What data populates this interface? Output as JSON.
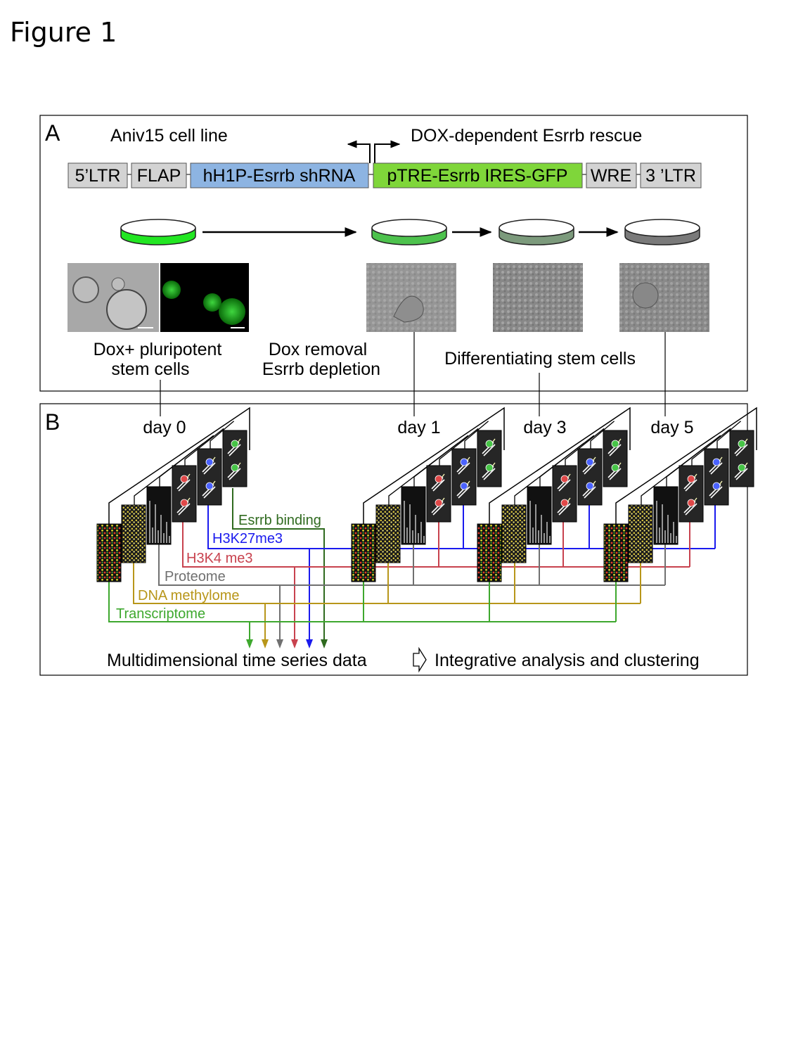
{
  "figure_title": "Figure 1",
  "panel_a": {
    "letter": "A",
    "cell_line_label": "Aniv15 cell line",
    "rescue_label": "DOX-dependent Esrrb rescue",
    "construct": [
      {
        "label": "5’LTR",
        "color": "#d3d3d3"
      },
      {
        "label": "FLAP",
        "color": "#d3d3d3"
      },
      {
        "label": "hH1P-Esrrb shRNA",
        "color": "#8db4e2"
      },
      {
        "label": "pTRE-Esrrb IRES-GFP",
        "color": "#7fd63a"
      },
      {
        "label": "WRE",
        "color": "#d3d3d3"
      },
      {
        "label": "3 ’LTR",
        "color": "#d3d3d3"
      }
    ],
    "dish_colors": [
      "#22e622",
      "#4dc24d",
      "#7c9a7c",
      "#7a7a7a"
    ],
    "captions": {
      "pluripotent_line1": "Dox+ pluripotent",
      "pluripotent_line2": "stem cells",
      "removal_line1": "Dox removal",
      "removal_line2": "Esrrb depletion",
      "differentiating": "Differentiating stem cells"
    }
  },
  "panel_b": {
    "letter": "B",
    "days": [
      "day 0",
      "day 1",
      "day 3",
      "day 5"
    ],
    "tracks": [
      {
        "label": "Esrrb binding",
        "color": "#2f6a1f"
      },
      {
        "label": "H3K27me3",
        "color": "#1a1aee"
      },
      {
        "label": "H3K4 me3",
        "color": "#c8424e"
      },
      {
        "label": "Proteome",
        "color": "#707070"
      },
      {
        "label": "DNA methylome",
        "color": "#b8961a"
      },
      {
        "label": "Transcriptome",
        "color": "#3ea82e"
      }
    ],
    "output_label": "Multidimensional time series data",
    "analysis_label": "Integrative analysis and clustering"
  }
}
